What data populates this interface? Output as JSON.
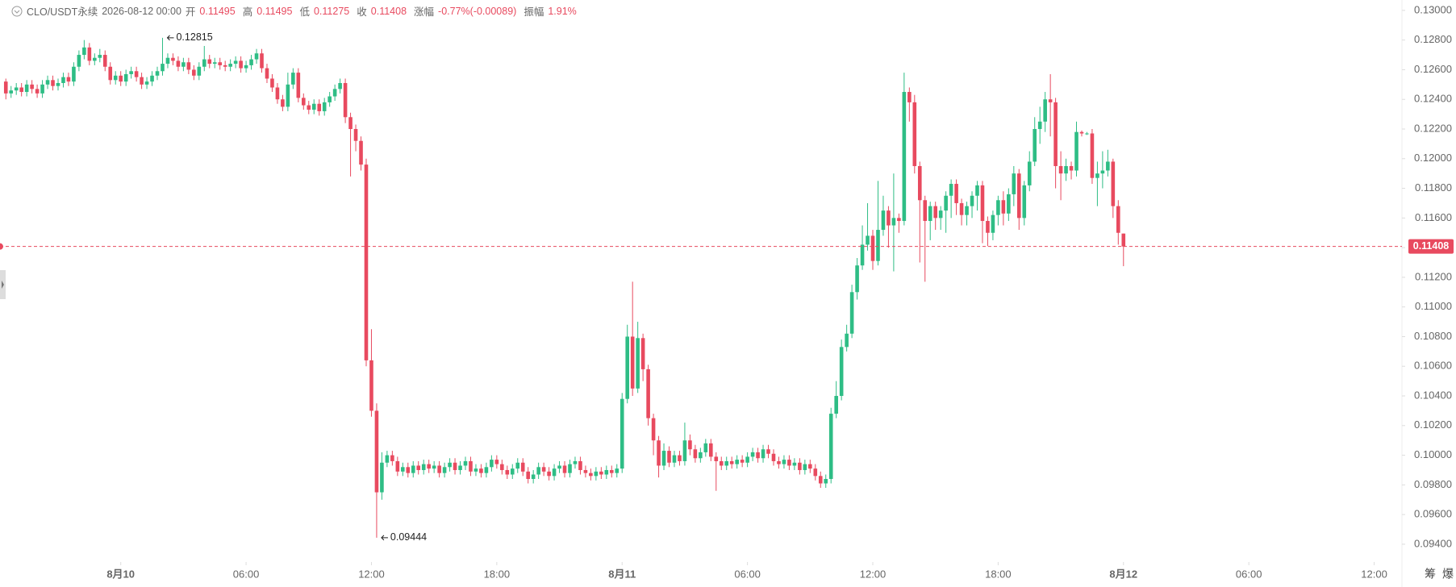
{
  "header": {
    "symbol": "CLO/USDT永续",
    "time": "2026-08-12 00:00",
    "fields": [
      {
        "label": "开",
        "value": "0.11495"
      },
      {
        "label": "高",
        "value": "0.11495"
      },
      {
        "label": "低",
        "value": "0.11275"
      },
      {
        "label": "收",
        "value": "0.11408"
      },
      {
        "label": "涨幅",
        "value": "-0.77%(-0.00089)"
      },
      {
        "label": "振幅",
        "value": "1.91%"
      }
    ]
  },
  "toolbar": [
    "筹",
    "爆"
  ],
  "chart_data": {
    "type": "candlestick",
    "up_color": "#2ebd85",
    "down_color": "#e84a5f",
    "x": [
      -5.5,
      -5.25,
      -5,
      -4.75,
      -4.5,
      -4.25,
      -4,
      -3.75,
      -3.5,
      -3.25,
      -3,
      -2.75,
      -2.5,
      -2.25,
      -2,
      -1.75,
      -1.5,
      -1.25,
      -1,
      -0.75,
      -0.5,
      -0.25,
      0,
      0.25,
      0.5,
      0.75,
      1,
      1.25,
      1.5,
      1.75,
      2,
      2.25,
      2.5,
      2.75,
      3,
      3.25,
      3.5,
      3.75,
      4,
      4.25,
      4.5,
      4.75,
      5,
      5.25,
      5.5,
      5.75,
      6,
      6.25,
      6.5,
      6.75,
      7,
      7.25,
      7.5,
      7.75,
      8,
      8.25,
      8.5,
      8.75,
      9,
      9.25,
      9.5,
      9.75,
      10,
      10.25,
      10.5,
      10.75,
      11,
      11.25,
      11.5,
      11.75,
      12,
      12.25,
      12.5,
      12.75,
      13,
      13.25,
      13.5,
      13.75,
      14,
      14.25,
      14.5,
      14.75,
      15,
      15.25,
      15.5,
      15.75,
      16,
      16.25,
      16.5,
      16.75,
      17,
      17.25,
      17.5,
      17.75,
      18,
      18.25,
      18.5,
      18.75,
      19,
      19.25,
      19.5,
      19.75,
      20,
      20.25,
      20.5,
      20.75,
      21,
      21.25,
      21.5,
      21.75,
      22,
      22.25,
      22.5,
      22.75,
      23,
      23.25,
      23.5,
      23.75,
      24,
      24.25,
      24.5,
      24.75,
      25,
      25.25,
      25.5,
      25.75,
      26,
      26.25,
      26.5,
      26.75,
      27,
      27.25,
      27.5,
      27.75,
      28,
      28.25,
      28.5,
      28.75,
      29,
      29.25,
      29.5,
      29.75,
      30,
      30.25,
      30.5,
      30.75,
      31,
      31.25,
      31.5,
      31.75,
      32,
      32.25,
      32.5,
      32.75,
      33,
      33.25,
      33.5,
      33.75,
      34,
      34.25,
      34.5,
      34.75,
      35,
      35.25,
      35.5,
      35.75,
      36,
      36.25,
      36.5,
      36.75,
      37,
      37.25,
      37.5,
      37.75,
      38,
      38.25,
      38.5,
      38.75,
      39,
      39.25,
      39.5,
      39.75,
      40,
      40.25,
      40.5,
      40.75,
      41,
      41.25,
      41.5,
      41.75,
      42,
      42.25,
      42.5,
      42.75,
      43,
      43.25,
      43.5,
      43.75,
      44,
      44.25,
      44.5,
      44.75,
      45,
      45.25,
      45.5,
      45.75,
      46,
      46.25,
      46.5,
      46.75,
      47,
      47.25,
      47.5,
      47.75,
      48
    ],
    "open": [
      0.1252,
      0.1244,
      0.1246,
      0.1248,
      0.1245,
      0.125,
      0.1247,
      0.1244,
      0.125,
      0.1253,
      0.1249,
      0.1251,
      0.1255,
      0.1252,
      0.1262,
      0.127,
      0.1275,
      0.1266,
      0.1268,
      0.127,
      0.1262,
      0.1253,
      0.1256,
      0.1252,
      0.1257,
      0.1259,
      0.1255,
      0.125,
      0.1252,
      0.1256,
      0.1259,
      0.1264,
      0.1268,
      0.1266,
      0.1262,
      0.1265,
      0.126,
      0.1256,
      0.1262,
      0.1267,
      0.1264,
      0.1265,
      0.1263,
      0.1262,
      0.1264,
      0.1266,
      0.1261,
      0.1263,
      0.1267,
      0.1271,
      0.1261,
      0.1254,
      0.1248,
      0.124,
      0.1235,
      0.125,
      0.1258,
      0.1241,
      0.1236,
      0.1233,
      0.1237,
      0.1232,
      0.1238,
      0.1242,
      0.1247,
      0.1251,
      0.1228,
      0.122,
      0.1212,
      0.1196,
      0.1064,
      0.103,
      0.0975,
      0.0995,
      0.1,
      0.0996,
      0.0989,
      0.0992,
      0.0988,
      0.0993,
      0.099,
      0.0994,
      0.0991,
      0.0993,
      0.0988,
      0.0992,
      0.0995,
      0.099,
      0.0993,
      0.0996,
      0.0989,
      0.0991,
      0.0988,
      0.0992,
      0.0997,
      0.0994,
      0.099,
      0.0987,
      0.0991,
      0.0995,
      0.0989,
      0.0984,
      0.0987,
      0.0992,
      0.0989,
      0.0986,
      0.0991,
      0.0993,
      0.0988,
      0.0994,
      0.0996,
      0.099,
      0.0988,
      0.0986,
      0.0989,
      0.0987,
      0.099,
      0.0988,
      0.0991,
      0.1038,
      0.108,
      0.1045,
      0.1079,
      0.1058,
      0.1025,
      0.101,
      0.0993,
      0.1003,
      0.0995,
      0.1,
      0.0996,
      0.101,
      0.1004,
      0.0998,
      0.1002,
      0.1008,
      0.0999,
      0.0996,
      0.0993,
      0.0996,
      0.0994,
      0.0997,
      0.0995,
      0.0999,
      0.1002,
      0.0998,
      0.1004,
      0.1001,
      0.0996,
      0.0994,
      0.0997,
      0.0993,
      0.0995,
      0.099,
      0.0994,
      0.0991,
      0.0986,
      0.0981,
      0.0984,
      0.1028,
      0.104,
      0.1073,
      0.1082,
      0.111,
      0.1128,
      0.1142,
      0.1148,
      0.1131,
      0.1152,
      0.1165,
      0.1155,
      0.116,
      0.1158,
      0.1245,
      0.1238,
      0.1195,
      0.1172,
      0.1158,
      0.1168,
      0.116,
      0.1165,
      0.1175,
      0.1183,
      0.117,
      0.1162,
      0.1168,
      0.1175,
      0.1182,
      0.1158,
      0.115,
      0.1162,
      0.1172,
      0.1163,
      0.1176,
      0.119,
      0.116,
      0.1182,
      0.1198,
      0.122,
      0.1225,
      0.124,
      0.1238,
      0.1195,
      0.119,
      0.1195,
      0.1192,
      0.1218,
      0.1217,
      0.1217,
      0.1187,
      0.119,
      0.1192,
      0.1198,
      0.1168,
      0.11495
    ],
    "high": [
      0.1254,
      0.1249,
      0.1251,
      0.1251,
      0.1253,
      0.1253,
      0.125,
      0.1253,
      0.1256,
      0.1256,
      0.1254,
      0.1258,
      0.1258,
      0.1265,
      0.1273,
      0.128,
      0.1278,
      0.1271,
      0.1274,
      0.1273,
      0.1265,
      0.1259,
      0.1259,
      0.126,
      0.1262,
      0.1262,
      0.1258,
      0.1255,
      0.1259,
      0.1262,
      0.12815,
      0.1271,
      0.1271,
      0.1269,
      0.1268,
      0.1268,
      0.1263,
      0.1265,
      0.1276,
      0.127,
      0.1268,
      0.1268,
      0.1266,
      0.1267,
      0.1269,
      0.1269,
      0.1266,
      0.127,
      0.1274,
      0.1274,
      0.1264,
      0.1257,
      0.1251,
      0.1243,
      0.1258,
      0.1261,
      0.1261,
      0.1244,
      0.1239,
      0.124,
      0.124,
      0.1241,
      0.1245,
      0.125,
      0.1254,
      0.1254,
      0.1231,
      0.1223,
      0.1215,
      0.12,
      0.1085,
      0.1035,
      0.1002,
      0.1003,
      0.1003,
      0.0999,
      0.0995,
      0.0995,
      0.0996,
      0.0996,
      0.0997,
      0.0997,
      0.0996,
      0.0996,
      0.0995,
      0.0998,
      0.0998,
      0.0996,
      0.0999,
      0.0999,
      0.0994,
      0.0994,
      0.0995,
      0.1,
      0.1,
      0.0997,
      0.0993,
      0.0994,
      0.0998,
      0.0998,
      0.0992,
      0.099,
      0.0995,
      0.0995,
      0.0992,
      0.0994,
      0.0996,
      0.0996,
      0.0997,
      0.0999,
      0.0999,
      0.0993,
      0.0991,
      0.0992,
      0.0992,
      0.0993,
      0.0993,
      0.0994,
      0.1042,
      0.1088,
      0.1117,
      0.109,
      0.1082,
      0.1061,
      0.1028,
      0.1013,
      0.1008,
      0.1006,
      0.1003,
      0.1003,
      0.1022,
      0.1014,
      0.1007,
      0.1005,
      0.1011,
      0.1011,
      0.1002,
      0.0999,
      0.0999,
      0.0999,
      0.1,
      0.1,
      0.1002,
      0.1005,
      0.1005,
      0.1007,
      0.1007,
      0.1004,
      0.0999,
      0.1,
      0.1,
      0.0998,
      0.0998,
      0.0997,
      0.0997,
      0.0994,
      0.0989,
      0.0987,
      0.1032,
      0.105,
      0.1078,
      0.1088,
      0.1115,
      0.1133,
      0.1155,
      0.117,
      0.1152,
      0.1185,
      0.1175,
      0.1168,
      0.119,
      0.1163,
      0.1258,
      0.1248,
      0.1243,
      0.1198,
      0.1175,
      0.1171,
      0.1171,
      0.1168,
      0.1178,
      0.1186,
      0.1186,
      0.1173,
      0.1171,
      0.1178,
      0.1185,
      0.1185,
      0.1161,
      0.1165,
      0.1175,
      0.1178,
      0.118,
      0.1195,
      0.1193,
      0.1185,
      0.1205,
      0.1228,
      0.1235,
      0.1245,
      0.1257,
      0.1241,
      0.1205,
      0.12,
      0.1198,
      0.1225,
      0.1219,
      0.1218,
      0.122,
      0.1198,
      0.1205,
      0.1206,
      0.12,
      0.1172,
      0.11495
    ],
    "low": [
      0.124,
      0.1241,
      0.1243,
      0.1242,
      0.1242,
      0.1244,
      0.1241,
      0.1241,
      0.1247,
      0.1246,
      0.1246,
      0.1248,
      0.1249,
      0.1249,
      0.1259,
      0.1267,
      0.1263,
      0.1263,
      0.1265,
      0.1259,
      0.125,
      0.125,
      0.1249,
      0.1249,
      0.1254,
      0.1252,
      0.1247,
      0.1247,
      0.1249,
      0.1253,
      0.1256,
      0.1261,
      0.1263,
      0.1259,
      0.1259,
      0.1257,
      0.1253,
      0.1253,
      0.1259,
      0.1261,
      0.1261,
      0.126,
      0.1259,
      0.1259,
      0.1261,
      0.1258,
      0.1258,
      0.126,
      0.1264,
      0.1258,
      0.1251,
      0.1245,
      0.1237,
      0.1232,
      0.1232,
      0.1247,
      0.1238,
      0.1233,
      0.123,
      0.123,
      0.1229,
      0.1229,
      0.1235,
      0.1239,
      0.1244,
      0.1224,
      0.1188,
      0.1205,
      0.1192,
      0.106,
      0.1026,
      0.09444,
      0.097,
      0.0992,
      0.0993,
      0.0986,
      0.0986,
      0.0985,
      0.0985,
      0.0987,
      0.0987,
      0.0988,
      0.0988,
      0.0985,
      0.0985,
      0.0989,
      0.0987,
      0.0987,
      0.099,
      0.0986,
      0.0986,
      0.0985,
      0.0985,
      0.0989,
      0.0991,
      0.0987,
      0.0984,
      0.0984,
      0.0988,
      0.0986,
      0.0981,
      0.0981,
      0.0984,
      0.0986,
      0.0983,
      0.0983,
      0.0988,
      0.0985,
      0.0985,
      0.0991,
      0.0987,
      0.0985,
      0.0983,
      0.0983,
      0.0984,
      0.0984,
      0.0985,
      0.0985,
      0.0988,
      0.1035,
      0.104,
      0.1042,
      0.105,
      0.102,
      0.1,
      0.0985,
      0.099,
      0.0992,
      0.0992,
      0.0993,
      0.0993,
      0.1,
      0.0995,
      0.0995,
      0.0999,
      0.0996,
      0.0976,
      0.099,
      0.099,
      0.0991,
      0.0991,
      0.0992,
      0.0992,
      0.0996,
      0.0995,
      0.0995,
      0.0998,
      0.0993,
      0.0991,
      0.0991,
      0.099,
      0.099,
      0.0987,
      0.0987,
      0.0988,
      0.0983,
      0.0978,
      0.0978,
      0.0981,
      0.1025,
      0.1037,
      0.107,
      0.1079,
      0.1105,
      0.1125,
      0.1138,
      0.1125,
      0.1128,
      0.1148,
      0.114,
      0.1124,
      0.115,
      0.1155,
      0.1225,
      0.119,
      0.113,
      0.1117,
      0.1145,
      0.1152,
      0.1152,
      0.115,
      0.116,
      0.1162,
      0.1155,
      0.1155,
      0.116,
      0.1165,
      0.1143,
      0.1141,
      0.1145,
      0.1155,
      0.1155,
      0.1158,
      0.1168,
      0.1152,
      0.1155,
      0.1178,
      0.1195,
      0.121,
      0.1218,
      0.1215,
      0.118,
      0.1172,
      0.1185,
      0.1186,
      0.1188,
      0.1215,
      0.1216,
      0.1183,
      0.1168,
      0.118,
      0.1188,
      0.116,
      0.1142,
      0.11275
    ],
    "close": [
      0.1244,
      0.1246,
      0.1248,
      0.1245,
      0.125,
      0.1247,
      0.1244,
      0.125,
      0.1253,
      0.1249,
      0.1251,
      0.1255,
      0.1252,
      0.1262,
      0.127,
      0.1275,
      0.1266,
      0.1268,
      0.127,
      0.1262,
      0.1253,
      0.1256,
      0.1252,
      0.1257,
      0.1259,
      0.1255,
      0.125,
      0.1252,
      0.1256,
      0.1259,
      0.1264,
      0.1268,
      0.1266,
      0.1262,
      0.1265,
      0.126,
      0.1256,
      0.1262,
      0.1267,
      0.1264,
      0.1265,
      0.1263,
      0.1262,
      0.1264,
      0.1266,
      0.1261,
      0.1263,
      0.1267,
      0.1271,
      0.1261,
      0.1254,
      0.1248,
      0.124,
      0.1235,
      0.125,
      0.1258,
      0.1241,
      0.1236,
      0.1233,
      0.1237,
      0.1232,
      0.1238,
      0.1242,
      0.1247,
      0.1251,
      0.1228,
      0.122,
      0.1212,
      0.1196,
      0.1064,
      0.103,
      0.0975,
      0.0995,
      0.1,
      0.0996,
      0.0989,
      0.0992,
      0.0988,
      0.0993,
      0.099,
      0.0994,
      0.0991,
      0.0993,
      0.0988,
      0.0992,
      0.0995,
      0.099,
      0.0993,
      0.0996,
      0.0989,
      0.0991,
      0.0988,
      0.0992,
      0.0997,
      0.0994,
      0.099,
      0.0987,
      0.0991,
      0.0995,
      0.0989,
      0.0984,
      0.0987,
      0.0992,
      0.0989,
      0.0986,
      0.0991,
      0.0993,
      0.0988,
      0.0994,
      0.0996,
      0.099,
      0.0988,
      0.0986,
      0.0989,
      0.0987,
      0.099,
      0.0988,
      0.0991,
      0.1038,
      0.108,
      0.1045,
      0.1079,
      0.1058,
      0.1025,
      0.101,
      0.0993,
      0.1003,
      0.0995,
      0.1,
      0.0996,
      0.101,
      0.1004,
      0.0998,
      0.1002,
      0.1008,
      0.0999,
      0.0996,
      0.0993,
      0.0996,
      0.0994,
      0.0997,
      0.0995,
      0.0999,
      0.1002,
      0.0998,
      0.1004,
      0.1001,
      0.0996,
      0.0994,
      0.0997,
      0.0993,
      0.0995,
      0.099,
      0.0994,
      0.0991,
      0.0986,
      0.0981,
      0.0984,
      0.1028,
      0.104,
      0.1073,
      0.1082,
      0.111,
      0.1128,
      0.1142,
      0.1148,
      0.1131,
      0.1152,
      0.1165,
      0.1155,
      0.116,
      0.1158,
      0.1245,
      0.1238,
      0.1195,
      0.1172,
      0.1158,
      0.1168,
      0.116,
      0.1165,
      0.1175,
      0.1183,
      0.117,
      0.1162,
      0.1168,
      0.1175,
      0.1182,
      0.1158,
      0.115,
      0.1162,
      0.1172,
      0.1163,
      0.1176,
      0.119,
      0.116,
      0.1182,
      0.1198,
      0.122,
      0.1225,
      0.124,
      0.1238,
      0.1195,
      0.119,
      0.1195,
      0.1192,
      0.1218,
      0.1217,
      0.1217,
      0.1187,
      0.119,
      0.1192,
      0.1198,
      0.1168,
      0.115,
      0.11408
    ],
    "high_marker": 0.12815,
    "low_marker": 0.09444,
    "last_price": 0.11408,
    "xlim": [
      -5.78,
      61.33
    ],
    "xticks": [
      {
        "value": 0,
        "label": "8月10"
      },
      {
        "value": 6,
        "label": "06:00"
      },
      {
        "value": 12,
        "label": "12:00"
      },
      {
        "value": 18,
        "label": "18:00"
      },
      {
        "value": 24,
        "label": "8月11"
      },
      {
        "value": 30,
        "label": "06:00"
      },
      {
        "value": 36,
        "label": "12:00"
      },
      {
        "value": 42,
        "label": "18:00"
      },
      {
        "value": 48,
        "label": "8月12"
      },
      {
        "value": 54,
        "label": "06:00"
      },
      {
        "value": 60,
        "label": "12:00"
      }
    ],
    "ylim": [
      0.0928,
      0.1307
    ],
    "yticks": [
      {
        "value": 0.094,
        "label": "0.09400"
      },
      {
        "value": 0.096,
        "label": "0.09600"
      },
      {
        "value": 0.098,
        "label": "0.09800"
      },
      {
        "value": 0.1,
        "label": "0.10000"
      },
      {
        "value": 0.102,
        "label": "0.10200"
      },
      {
        "value": 0.104,
        "label": "0.10400"
      },
      {
        "value": 0.106,
        "label": "0.10600"
      },
      {
        "value": 0.108,
        "label": "0.10800"
      },
      {
        "value": 0.11,
        "label": "0.11000"
      },
      {
        "value": 0.112,
        "label": "0.11200"
      },
      {
        "value": 0.114,
        "label": "0.11400"
      },
      {
        "value": 0.116,
        "label": "0.11600"
      },
      {
        "value": 0.118,
        "label": "0.11800"
      },
      {
        "value": 0.12,
        "label": "0.12000"
      },
      {
        "value": 0.122,
        "label": "0.12200"
      },
      {
        "value": 0.124,
        "label": "0.12400"
      },
      {
        "value": 0.126,
        "label": "0.12600"
      },
      {
        "value": 0.128,
        "label": "0.12800"
      },
      {
        "value": 0.13,
        "label": "0.13000"
      }
    ],
    "grid": false
  }
}
